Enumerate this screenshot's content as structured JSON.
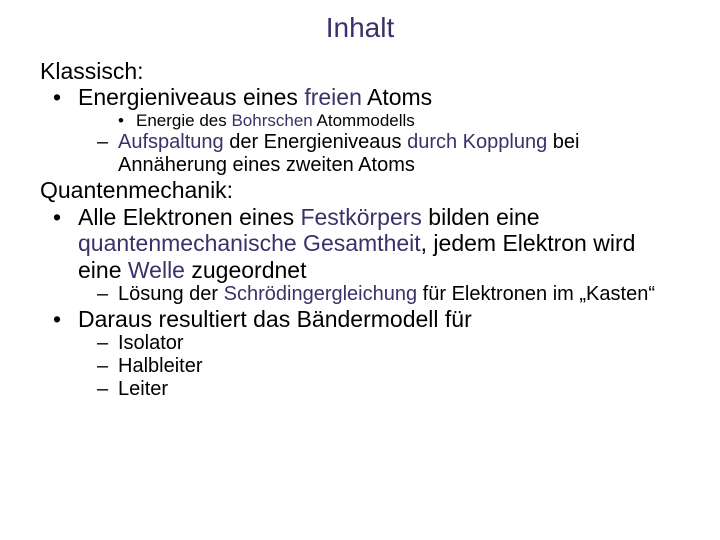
{
  "colors": {
    "highlight": "#3a3169",
    "text": "#000000",
    "background": "#ffffff"
  },
  "typography": {
    "title_fontsize": 28,
    "l1_fontsize": 23,
    "l2_bullet_fontsize": 17,
    "l2_dash_fontsize": 20,
    "font_family": "Arial"
  },
  "title": "Inhalt",
  "section1": {
    "label": "Klassisch:",
    "item1_pre": "Energieniveaus eines ",
    "item1_hl": "freien",
    "item1_post": " Atoms",
    "sub_bullet_pre": "Energie des ",
    "sub_bullet_hl": "Bohrschen",
    "sub_bullet_post": " Atommodells",
    "sub_dash_a": "Aufspaltung",
    "sub_dash_b": " der Energieniveaus ",
    "sub_dash_c": "durch Kopplung",
    "sub_dash_d": " bei Annäherung eines zweiten Atoms"
  },
  "section2": {
    "label": "Quantenmechanik:",
    "item1_a": "Alle Elektronen eines ",
    "item1_b": "Festkörpers",
    "item1_c": " bilden eine ",
    "item1_d": "quantenmechanische Gesamtheit",
    "item1_e": ", jedem Elektron wird eine ",
    "item1_f": "Welle",
    "item1_g": " zugeordnet",
    "sub_dash_a": "Lösung der ",
    "sub_dash_b": "Schrödingergleichung",
    "sub_dash_c": " für Elektronen im „Kasten“",
    "item2": "Daraus resultiert das Bändermodell für",
    "result1": "Isolator",
    "result2": "Halbleiter",
    "result3": "Leiter"
  }
}
